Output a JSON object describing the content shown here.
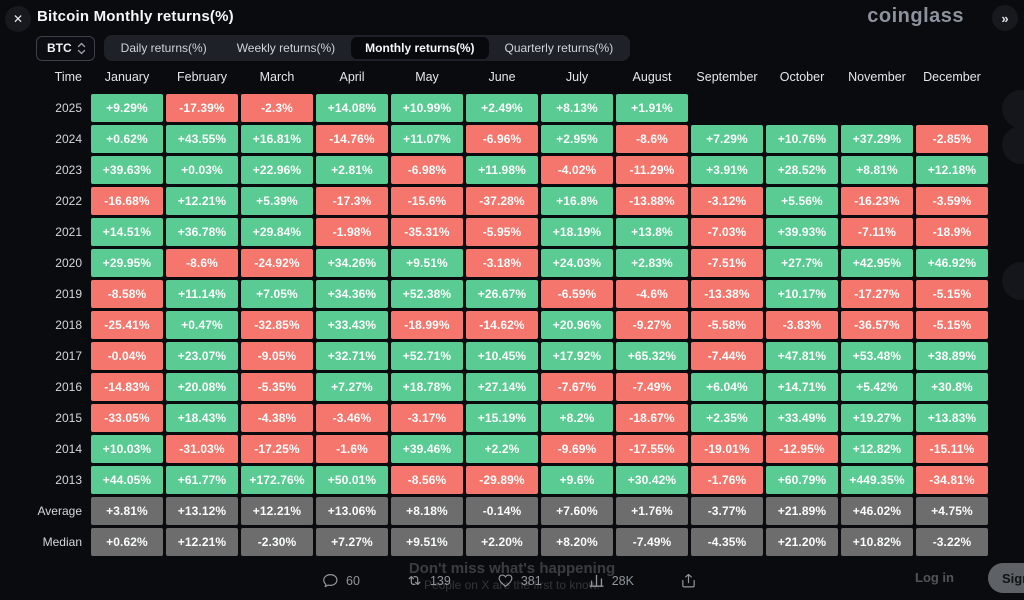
{
  "header": {
    "title": "Bitcoin Monthly returns(%)",
    "logo": "coinglass",
    "close_icon": "✕",
    "expand_icon": "»"
  },
  "controls": {
    "symbol": "BTC",
    "tabs": [
      {
        "label": "Daily returns(%)",
        "active": false
      },
      {
        "label": "Weekly returns(%)",
        "active": false
      },
      {
        "label": "Monthly returns(%)",
        "active": true
      },
      {
        "label": "Quarterly returns(%)",
        "active": false
      }
    ]
  },
  "colors": {
    "positive": "#5acb93",
    "negative": "#f4766d",
    "stat": "#6d6d6d"
  },
  "table": {
    "columns": [
      "Time",
      "January",
      "February",
      "March",
      "April",
      "May",
      "June",
      "July",
      "August",
      "September",
      "October",
      "November",
      "December"
    ],
    "rows": [
      {
        "label": "2025",
        "type": "year",
        "values": [
          "+9.29%",
          "-17.39%",
          "-2.3%",
          "+14.08%",
          "+10.99%",
          "+2.49%",
          "+8.13%",
          "+1.91%",
          "",
          "",
          "",
          ""
        ]
      },
      {
        "label": "2024",
        "type": "year",
        "values": [
          "+0.62%",
          "+43.55%",
          "+16.81%",
          "-14.76%",
          "+11.07%",
          "-6.96%",
          "+2.95%",
          "-8.6%",
          "+7.29%",
          "+10.76%",
          "+37.29%",
          "-2.85%"
        ]
      },
      {
        "label": "2023",
        "type": "year",
        "values": [
          "+39.63%",
          "+0.03%",
          "+22.96%",
          "+2.81%",
          "-6.98%",
          "+11.98%",
          "-4.02%",
          "-11.29%",
          "+3.91%",
          "+28.52%",
          "+8.81%",
          "+12.18%"
        ]
      },
      {
        "label": "2022",
        "type": "year",
        "values": [
          "-16.68%",
          "+12.21%",
          "+5.39%",
          "-17.3%",
          "-15.6%",
          "-37.28%",
          "+16.8%",
          "-13.88%",
          "-3.12%",
          "+5.56%",
          "-16.23%",
          "-3.59%"
        ]
      },
      {
        "label": "2021",
        "type": "year",
        "values": [
          "+14.51%",
          "+36.78%",
          "+29.84%",
          "-1.98%",
          "-35.31%",
          "-5.95%",
          "+18.19%",
          "+13.8%",
          "-7.03%",
          "+39.93%",
          "-7.11%",
          "-18.9%"
        ]
      },
      {
        "label": "2020",
        "type": "year",
        "values": [
          "+29.95%",
          "-8.6%",
          "-24.92%",
          "+34.26%",
          "+9.51%",
          "-3.18%",
          "+24.03%",
          "+2.83%",
          "-7.51%",
          "+27.7%",
          "+42.95%",
          "+46.92%"
        ]
      },
      {
        "label": "2019",
        "type": "year",
        "values": [
          "-8.58%",
          "+11.14%",
          "+7.05%",
          "+34.36%",
          "+52.38%",
          "+26.67%",
          "-6.59%",
          "-4.6%",
          "-13.38%",
          "+10.17%",
          "-17.27%",
          "-5.15%"
        ]
      },
      {
        "label": "2018",
        "type": "year",
        "values": [
          "-25.41%",
          "+0.47%",
          "-32.85%",
          "+33.43%",
          "-18.99%",
          "-14.62%",
          "+20.96%",
          "-9.27%",
          "-5.58%",
          "-3.83%",
          "-36.57%",
          "-5.15%"
        ]
      },
      {
        "label": "2017",
        "type": "year",
        "values": [
          "-0.04%",
          "+23.07%",
          "-9.05%",
          "+32.71%",
          "+52.71%",
          "+10.45%",
          "+17.92%",
          "+65.32%",
          "-7.44%",
          "+47.81%",
          "+53.48%",
          "+38.89%"
        ]
      },
      {
        "label": "2016",
        "type": "year",
        "values": [
          "-14.83%",
          "+20.08%",
          "-5.35%",
          "+7.27%",
          "+18.78%",
          "+27.14%",
          "-7.67%",
          "-7.49%",
          "+6.04%",
          "+14.71%",
          "+5.42%",
          "+30.8%"
        ]
      },
      {
        "label": "2015",
        "type": "year",
        "values": [
          "-33.05%",
          "+18.43%",
          "-4.38%",
          "-3.46%",
          "-3.17%",
          "+15.19%",
          "+8.2%",
          "-18.67%",
          "+2.35%",
          "+33.49%",
          "+19.27%",
          "+13.83%"
        ]
      },
      {
        "label": "2014",
        "type": "year",
        "values": [
          "+10.03%",
          "-31.03%",
          "-17.25%",
          "-1.6%",
          "+39.46%",
          "+2.2%",
          "-9.69%",
          "-17.55%",
          "-19.01%",
          "-12.95%",
          "+12.82%",
          "-15.11%"
        ]
      },
      {
        "label": "2013",
        "type": "year",
        "values": [
          "+44.05%",
          "+61.77%",
          "+172.76%",
          "+50.01%",
          "-8.56%",
          "-29.89%",
          "+9.6%",
          "+30.42%",
          "-1.76%",
          "+60.79%",
          "+449.35%",
          "-34.81%"
        ]
      },
      {
        "label": "Average",
        "type": "stat",
        "values": [
          "+3.81%",
          "+13.12%",
          "+12.21%",
          "+13.06%",
          "+8.18%",
          "-0.14%",
          "+7.60%",
          "+1.76%",
          "-3.77%",
          "+21.89%",
          "+46.02%",
          "+4.75%"
        ]
      },
      {
        "label": "Median",
        "type": "stat",
        "values": [
          "+0.62%",
          "+12.21%",
          "-2.30%",
          "+7.27%",
          "+9.51%",
          "+2.20%",
          "+8.20%",
          "-7.49%",
          "-4.35%",
          "+21.20%",
          "+10.82%",
          "-3.22%"
        ]
      }
    ]
  },
  "footer": {
    "banner_title": "Don't miss what's happening",
    "banner_subtitle": "People on X are the first to know.",
    "login_label": "Log in",
    "signup_label": "Sign up",
    "actions": {
      "comments": "60",
      "reposts": "139",
      "likes": "381",
      "views": "28K"
    }
  }
}
